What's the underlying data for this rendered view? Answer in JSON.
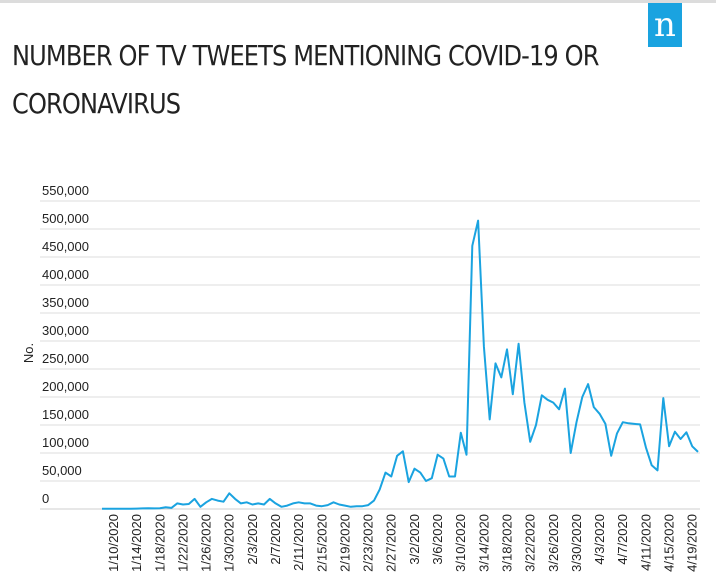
{
  "brand": {
    "logo_text": "n",
    "accent": "#1aa3e0"
  },
  "chart_data": {
    "type": "line",
    "title": "NUMBER OF TV TWEETS MENTIONING COVID-19 OR CORONAVIRUS",
    "ylabel": "No.",
    "xlabel": "",
    "ylim": [
      0,
      550000
    ],
    "grid": true,
    "line_color": "#1aa3e0",
    "y_ticks": [
      0,
      50000,
      100000,
      150000,
      200000,
      250000,
      300000,
      350000,
      400000,
      450000,
      500000,
      550000
    ],
    "y_tick_labels": [
      "0",
      "50,000",
      "100,000",
      "150,000",
      "200,000",
      "250,000",
      "300,000",
      "350,000",
      "400,000",
      "450,000",
      "500,000",
      "550,000"
    ],
    "x_tick_labels": [
      "1/10/2020",
      "1/14/2020",
      "1/18/2020",
      "1/22/2020",
      "1/26/2020",
      "1/30/2020",
      "2/3/2020",
      "2/7/2020",
      "2/11/2020",
      "2/15/2020",
      "2/19/2020",
      "2/23/2020",
      "2/27/2020",
      "3/2/2020",
      "3/6/2020",
      "3/10/2020",
      "3/14/2020",
      "3/18/2020",
      "3/22/2020",
      "3/26/2020",
      "3/30/2020",
      "4/3/2020",
      "4/7/2020",
      "4/11/2020",
      "4/15/2020",
      "4/19/2020"
    ],
    "series": [
      {
        "start_date": "1/10/2020",
        "end_date": "4/20/2020",
        "values": [
          500,
          500,
          500,
          500,
          500,
          600,
          800,
          1000,
          1500,
          1000,
          1500,
          3000,
          2000,
          10000,
          8000,
          9000,
          18000,
          4000,
          12000,
          18000,
          15000,
          13000,
          28000,
          18000,
          10000,
          12000,
          8000,
          10000,
          8000,
          18000,
          10000,
          4000,
          6000,
          10000,
          12000,
          10000,
          10000,
          6000,
          5000,
          7000,
          12000,
          8000,
          6000,
          4000,
          5000,
          5000,
          7000,
          15000,
          35000,
          65000,
          58000,
          95000,
          103000,
          48000,
          72000,
          65000,
          50000,
          55000,
          97000,
          90000,
          58000,
          58000,
          136000,
          97000,
          470000,
          515000,
          290000,
          160000,
          260000,
          235000,
          285000,
          205000,
          295000,
          190000,
          120000,
          150000,
          203000,
          195000,
          190000,
          178000,
          215000,
          100000,
          155000,
          200000,
          223000,
          182000,
          170000,
          152000,
          95000,
          135000,
          155000,
          153000,
          152000,
          151000,
          110000,
          78000,
          69000,
          198000,
          112000,
          138000,
          125000,
          137000,
          112000,
          102000
        ]
      }
    ]
  }
}
